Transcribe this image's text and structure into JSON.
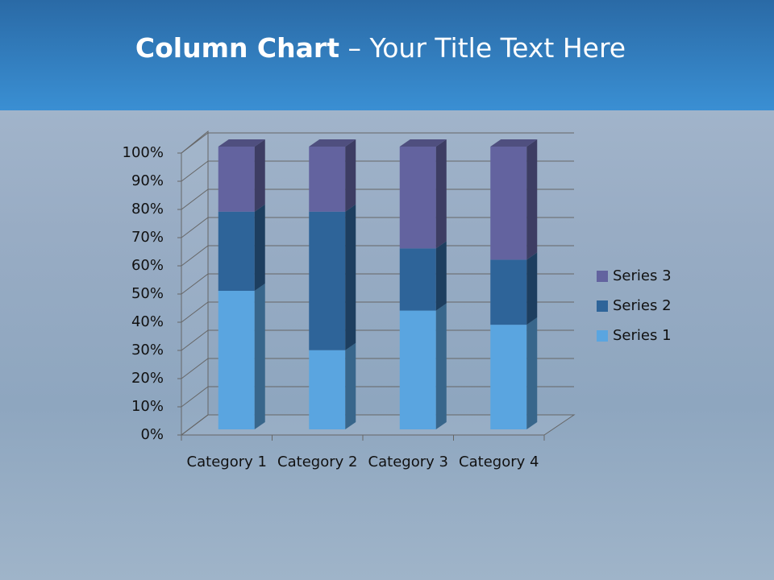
{
  "chart_data": {
    "type": "bar",
    "stacked": true,
    "title": [
      "Column Chart",
      "– Your Title Text Here"
    ],
    "categories": [
      "Category 1",
      "Category 2",
      "Category 3",
      "Category 4"
    ],
    "series": [
      {
        "name": "Series 1",
        "color": "#5aa5e0",
        "values": [
          49,
          28,
          42,
          37
        ]
      },
      {
        "name": "Series 2",
        "color": "#2e6499",
        "values": [
          28,
          49,
          22,
          23
        ]
      },
      {
        "name": "Series 3",
        "color": "#63639f",
        "values": [
          23,
          23,
          36,
          40
        ]
      }
    ],
    "ylim": [
      0,
      100
    ],
    "yticks": [
      {
        "value": 0,
        "label": "0%"
      },
      {
        "value": 10,
        "label": "10%"
      },
      {
        "value": 20,
        "label": "20%"
      },
      {
        "value": 30,
        "label": "30%"
      },
      {
        "value": 40,
        "label": "40%"
      },
      {
        "value": 50,
        "label": "50%"
      },
      {
        "value": 60,
        "label": "60%"
      },
      {
        "value": 70,
        "label": "70%"
      },
      {
        "value": 80,
        "label": "80%"
      },
      {
        "value": 90,
        "label": "90%"
      },
      {
        "value": 100,
        "label": "100%"
      }
    ],
    "grid": true,
    "legend": "right"
  }
}
